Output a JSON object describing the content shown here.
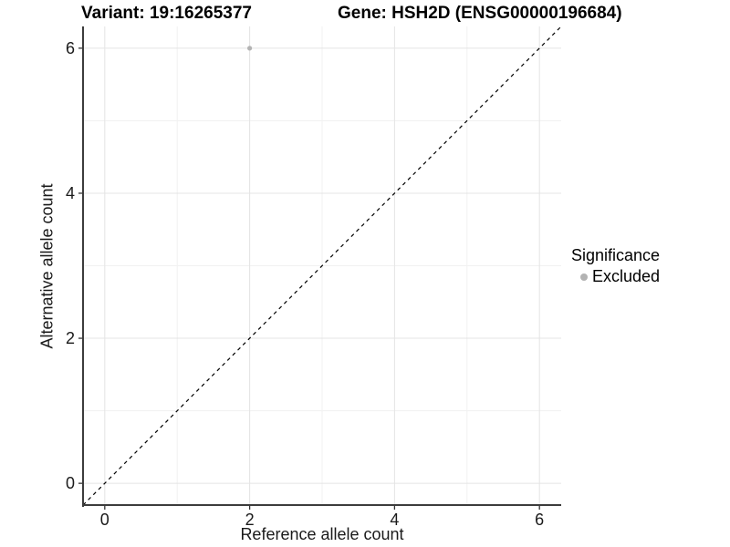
{
  "chart_data": {
    "type": "scatter",
    "title_left": "Variant: 19:16265377",
    "title_right": "Gene: HSH2D (ENSG00000196684)",
    "xlabel": "Reference allele count",
    "ylabel": "Alternative allele count",
    "xlim": [
      -0.3,
      6.3
    ],
    "ylim": [
      -0.3,
      6.3
    ],
    "x_ticks": [
      0,
      2,
      4,
      6
    ],
    "y_ticks": [
      0,
      2,
      4,
      6
    ],
    "x_minor_gridlines": [
      1,
      3,
      5
    ],
    "y_minor_gridlines": [
      1,
      3,
      5
    ],
    "grid": true,
    "points": [
      {
        "x": 2,
        "y": 6,
        "significance": "Excluded"
      }
    ],
    "reference_line": {
      "equation": "y = x",
      "style": "dashed",
      "color": "#000000"
    },
    "legend": {
      "title": "Significance",
      "position": "right",
      "entries": [
        {
          "label": "Excluded",
          "color": "#b3b3b3"
        }
      ]
    }
  },
  "colors": {
    "background": "#ffffff",
    "grid_major": "#e4e4e4",
    "grid_minor": "#f1f1f1",
    "axis_line": "#3c3c3c",
    "tick_mark": "#333333",
    "tick_text": "#1a1a1a",
    "point": "#b3b3b3"
  }
}
